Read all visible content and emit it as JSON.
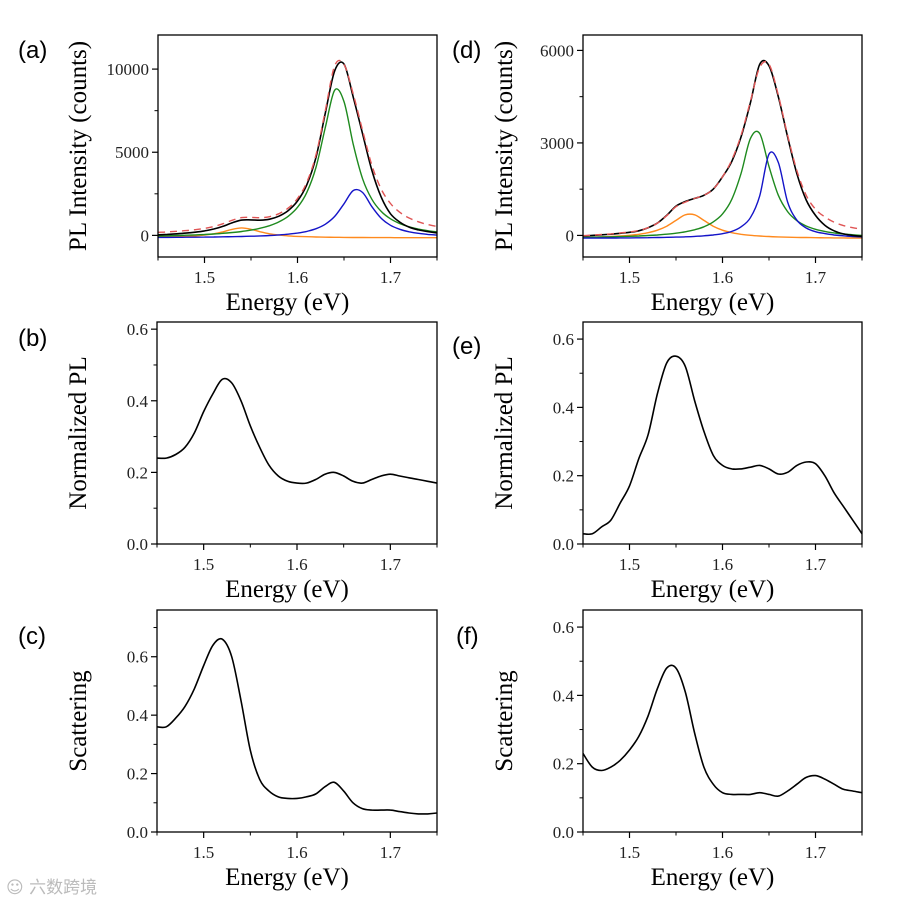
{
  "watermark": "六数跨境",
  "colors": {
    "data": "#000000",
    "fit": "#e05555",
    "green": "#1e8a1e",
    "blue": "#1414c8",
    "orange": "#ff8a1e"
  },
  "chart_data": [
    {
      "id": "a",
      "panel_label": "(a)",
      "type": "line",
      "xlabel": "Energy (eV)",
      "ylabel": "PL Intensity (counts)",
      "xlim": [
        1.45,
        1.75
      ],
      "ylim": [
        -1300,
        12050
      ],
      "xticks": [
        1.5,
        1.6,
        1.7
      ],
      "xtick_labels": [
        "1.5",
        "1.6",
        "1.7"
      ],
      "xminor": [
        1.45,
        1.55,
        1.65,
        1.75
      ],
      "yticks": [
        0,
        5000,
        10000
      ],
      "ytick_labels": [
        "0",
        "5000",
        "10000"
      ],
      "yminor": [
        2500,
        7500
      ],
      "x": [
        1.45,
        1.46,
        1.47,
        1.48,
        1.49,
        1.5,
        1.51,
        1.52,
        1.53,
        1.54,
        1.55,
        1.56,
        1.57,
        1.58,
        1.59,
        1.6,
        1.61,
        1.62,
        1.63,
        1.64,
        1.65,
        1.66,
        1.67,
        1.68,
        1.69,
        1.7,
        1.71,
        1.72,
        1.73,
        1.74,
        1.75
      ],
      "series": [
        {
          "name": "orange component",
          "color": "orange",
          "dashed": false,
          "values": [
            -107,
            -97,
            -82,
            -61,
            -30,
            19,
            96,
            216,
            367,
            450,
            367,
            216,
            96,
            19,
            -30,
            -61,
            -82,
            -97,
            -107,
            -115,
            -121,
            -125,
            -129,
            -131,
            -134,
            -136,
            -137,
            -139,
            -140,
            -141,
            -142
          ]
        },
        {
          "name": "blue component",
          "color": "blue",
          "dashed": false,
          "values": [
            -122,
            -119,
            -115,
            -112,
            -107,
            -102,
            -95,
            -88,
            -78,
            -67,
            -52,
            -33,
            -8,
            26,
            72,
            140,
            241,
            402,
            674,
            1139,
            1901,
            2699,
            2581,
            1726,
            1025,
            607,
            365,
            218,
            125,
            62,
            18
          ]
        },
        {
          "name": "green component",
          "color": "green",
          "dashed": false,
          "values": [
            -37,
            -25,
            -10,
            8,
            28,
            54,
            85,
            123,
            172,
            235,
            317,
            429,
            585,
            810,
            1150,
            1687,
            2583,
            4113,
            6511,
            8731,
            8048,
            5459,
            3403,
            2167,
            1440,
            996,
            710,
            516,
            380,
            281,
            208
          ]
        },
        {
          "name": "measured",
          "color": "data",
          "dashed": false,
          "values": [
            35,
            60,
            93,
            135,
            191,
            271,
            386,
            551,
            761,
            918,
            932,
            912,
            973,
            1155,
            1492,
            2066,
            3042,
            4718,
            7378,
            9900,
            10300,
            8300,
            6100,
            3900,
            2300,
            1300,
            800,
            500,
            330,
            230,
            150
          ]
        },
        {
          "name": "fit",
          "color": "fit",
          "dashed": true,
          "values": [
            185,
            210,
            243,
            285,
            341,
            421,
            536,
            701,
            911,
            1068,
            1082,
            1062,
            1123,
            1305,
            1642,
            2216,
            3192,
            4868,
            7528,
            10205,
            10278,
            8483,
            6305,
            4212,
            2781,
            1917,
            1388,
            1045,
            815,
            652,
            534
          ]
        }
      ]
    },
    {
      "id": "d",
      "panel_label": "(d)",
      "type": "line",
      "xlabel": "Energy (eV)",
      "ylabel": "PL Intensity (counts)",
      "xlim": [
        1.45,
        1.75
      ],
      "ylim": [
        -700,
        6500
      ],
      "xticks": [
        1.5,
        1.6,
        1.7
      ],
      "xtick_labels": [
        "1.5",
        "1.6",
        "1.7"
      ],
      "xminor": [
        1.45,
        1.55,
        1.65,
        1.75
      ],
      "yticks": [
        0,
        3000,
        6000
      ],
      "ytick_labels": [
        "0",
        "3000",
        "6000"
      ],
      "yminor": [
        1500,
        4500
      ],
      "x": [
        1.45,
        1.46,
        1.47,
        1.48,
        1.49,
        1.5,
        1.51,
        1.52,
        1.53,
        1.54,
        1.55,
        1.56,
        1.57,
        1.58,
        1.59,
        1.6,
        1.61,
        1.62,
        1.63,
        1.64,
        1.65,
        1.66,
        1.67,
        1.68,
        1.69,
        1.7,
        1.71,
        1.72,
        1.73,
        1.74,
        1.75
      ],
      "series": [
        {
          "name": "orange component",
          "color": "orange",
          "dashed": false,
          "values": [
            -64,
            -57,
            -48,
            -36,
            -20,
            3,
            37,
            89,
            170,
            300,
            488,
            669,
            669,
            488,
            300,
            170,
            89,
            37,
            3,
            -20,
            -36,
            -48,
            -57,
            -64,
            -69,
            -73,
            -77,
            -80,
            -82,
            -84,
            -86
          ]
        },
        {
          "name": "green component",
          "color": "green",
          "dashed": false,
          "values": [
            -62,
            -57,
            -52,
            -46,
            -38,
            -29,
            -18,
            -3,
            15,
            40,
            72,
            117,
            183,
            281,
            437,
            697,
            1171,
            2014,
            3140,
            3305,
            2235,
            1304,
            773,
            478,
            306,
            199,
            129,
            80,
            45,
            20,
            0
          ]
        },
        {
          "name": "blue component",
          "color": "blue",
          "dashed": false,
          "values": [
            -88,
            -87,
            -85,
            -84,
            -82,
            -79,
            -76,
            -73,
            -68,
            -62,
            -55,
            -46,
            -32,
            -14,
            14,
            57,
            129,
            279,
            574,
            1280,
            2638,
            2368,
            1084,
            494,
            242,
            119,
            60,
            15,
            -13,
            -34,
            -47
          ]
        },
        {
          "name": "measured",
          "color": "data",
          "dashed": false,
          "values": [
            -20,
            0,
            20,
            40,
            70,
            100,
            150,
            250,
            400,
            650,
            950,
            1100,
            1200,
            1300,
            1500,
            1900,
            2400,
            3200,
            4300,
            5550,
            5500,
            4500,
            3200,
            2000,
            1150,
            650,
            330,
            150,
            50,
            0,
            -30
          ]
        },
        {
          "name": "fit",
          "color": "fit",
          "dashed": true,
          "values": [
            -10,
            10,
            30,
            50,
            80,
            110,
            160,
            250,
            400,
            640,
            930,
            1080,
            1200,
            1300,
            1500,
            1900,
            2450,
            3250,
            4350,
            5450,
            5550,
            4550,
            3250,
            2100,
            1300,
            850,
            600,
            430,
            320,
            250,
            200
          ]
        }
      ]
    },
    {
      "id": "b",
      "panel_label": "(b)",
      "type": "line",
      "xlabel": "Energy (eV)",
      "ylabel": "Normalized PL",
      "xlim": [
        1.45,
        1.75
      ],
      "ylim": [
        0,
        0.62
      ],
      "xticks": [
        1.5,
        1.6,
        1.7
      ],
      "xtick_labels": [
        "1.5",
        "1.6",
        "1.7"
      ],
      "xminor": [
        1.45,
        1.55,
        1.65,
        1.75
      ],
      "yticks": [
        0,
        0.2,
        0.4,
        0.6
      ],
      "ytick_labels": [
        "0.0",
        "0.2",
        "0.4",
        "0.6"
      ],
      "yminor": [
        0.1,
        0.3,
        0.5
      ],
      "x": [
        1.45,
        1.46,
        1.47,
        1.48,
        1.49,
        1.5,
        1.51,
        1.52,
        1.53,
        1.54,
        1.55,
        1.56,
        1.57,
        1.58,
        1.59,
        1.6,
        1.61,
        1.62,
        1.63,
        1.64,
        1.65,
        1.66,
        1.67,
        1.68,
        1.69,
        1.7,
        1.71,
        1.72,
        1.73,
        1.74,
        1.75
      ],
      "series": [
        {
          "name": "normalized PL",
          "color": "data",
          "dashed": false,
          "values": [
            0.24,
            0.24,
            0.25,
            0.27,
            0.31,
            0.37,
            0.42,
            0.46,
            0.45,
            0.4,
            0.33,
            0.27,
            0.22,
            0.19,
            0.175,
            0.17,
            0.17,
            0.18,
            0.195,
            0.2,
            0.19,
            0.175,
            0.17,
            0.18,
            0.19,
            0.195,
            0.19,
            0.185,
            0.18,
            0.175,
            0.17
          ]
        }
      ]
    },
    {
      "id": "e",
      "panel_label": "(e)",
      "type": "line",
      "xlabel": "Energy (eV)",
      "ylabel": "Normalized PL",
      "xlim": [
        1.45,
        1.75
      ],
      "ylim": [
        0,
        0.65
      ],
      "xticks": [
        1.5,
        1.6,
        1.7
      ],
      "xtick_labels": [
        "1.5",
        "1.6",
        "1.7"
      ],
      "xminor": [
        1.45,
        1.55,
        1.65,
        1.75
      ],
      "yticks": [
        0,
        0.2,
        0.4,
        0.6
      ],
      "ytick_labels": [
        "0.0",
        "0.2",
        "0.4",
        "0.6"
      ],
      "yminor": [
        0.1,
        0.3,
        0.5
      ],
      "x": [
        1.45,
        1.46,
        1.47,
        1.48,
        1.49,
        1.5,
        1.51,
        1.52,
        1.53,
        1.54,
        1.55,
        1.56,
        1.57,
        1.58,
        1.59,
        1.6,
        1.61,
        1.62,
        1.63,
        1.64,
        1.65,
        1.66,
        1.67,
        1.68,
        1.69,
        1.7,
        1.71,
        1.72,
        1.73,
        1.74,
        1.75
      ],
      "series": [
        {
          "name": "normalized PL",
          "color": "data",
          "dashed": false,
          "values": [
            0.03,
            0.03,
            0.05,
            0.07,
            0.12,
            0.17,
            0.25,
            0.32,
            0.44,
            0.53,
            0.55,
            0.52,
            0.42,
            0.33,
            0.26,
            0.23,
            0.22,
            0.22,
            0.225,
            0.23,
            0.22,
            0.205,
            0.21,
            0.23,
            0.24,
            0.235,
            0.2,
            0.15,
            0.11,
            0.07,
            0.03
          ]
        }
      ]
    },
    {
      "id": "c",
      "panel_label": "(c)",
      "type": "line",
      "xlabel": "Energy (eV)",
      "ylabel": "Scattering",
      "xlim": [
        1.45,
        1.75
      ],
      "ylim": [
        0,
        0.76
      ],
      "xticks": [
        1.5,
        1.6,
        1.7
      ],
      "xtick_labels": [
        "1.5",
        "1.6",
        "1.7"
      ],
      "xminor": [
        1.45,
        1.55,
        1.65,
        1.75
      ],
      "yticks": [
        0,
        0.2,
        0.4,
        0.6
      ],
      "ytick_labels": [
        "0.0",
        "0.2",
        "0.4",
        "0.6"
      ],
      "yminor": [
        0.1,
        0.3,
        0.5,
        0.7
      ],
      "x": [
        1.45,
        1.46,
        1.47,
        1.48,
        1.49,
        1.5,
        1.51,
        1.52,
        1.53,
        1.54,
        1.55,
        1.56,
        1.57,
        1.58,
        1.59,
        1.6,
        1.61,
        1.62,
        1.63,
        1.64,
        1.65,
        1.66,
        1.67,
        1.68,
        1.69,
        1.7,
        1.71,
        1.72,
        1.73,
        1.74,
        1.75
      ],
      "series": [
        {
          "name": "scattering",
          "color": "data",
          "dashed": false,
          "values": [
            0.36,
            0.36,
            0.39,
            0.43,
            0.49,
            0.57,
            0.64,
            0.66,
            0.6,
            0.45,
            0.28,
            0.18,
            0.14,
            0.12,
            0.115,
            0.115,
            0.12,
            0.13,
            0.155,
            0.17,
            0.14,
            0.1,
            0.08,
            0.075,
            0.075,
            0.075,
            0.07,
            0.065,
            0.062,
            0.062,
            0.065
          ]
        }
      ]
    },
    {
      "id": "f",
      "panel_label": "(f)",
      "type": "line",
      "xlabel": "Energy (eV)",
      "ylabel": "Scattering",
      "xlim": [
        1.45,
        1.75
      ],
      "ylim": [
        0,
        0.65
      ],
      "xticks": [
        1.5,
        1.6,
        1.7
      ],
      "xtick_labels": [
        "1.5",
        "1.6",
        "1.7"
      ],
      "xminor": [
        1.45,
        1.55,
        1.65,
        1.75
      ],
      "yticks": [
        0,
        0.2,
        0.4,
        0.6
      ],
      "ytick_labels": [
        "0.0",
        "0.2",
        "0.4",
        "0.6"
      ],
      "yminor": [
        0.1,
        0.3,
        0.5
      ],
      "x": [
        1.45,
        1.46,
        1.47,
        1.48,
        1.49,
        1.5,
        1.51,
        1.52,
        1.53,
        1.54,
        1.55,
        1.56,
        1.57,
        1.58,
        1.59,
        1.6,
        1.61,
        1.62,
        1.63,
        1.64,
        1.65,
        1.66,
        1.67,
        1.68,
        1.69,
        1.7,
        1.71,
        1.72,
        1.73,
        1.74,
        1.75
      ],
      "series": [
        {
          "name": "scattering",
          "color": "data",
          "dashed": false,
          "values": [
            0.23,
            0.19,
            0.18,
            0.19,
            0.21,
            0.24,
            0.28,
            0.34,
            0.42,
            0.48,
            0.48,
            0.41,
            0.29,
            0.19,
            0.14,
            0.115,
            0.11,
            0.11,
            0.11,
            0.115,
            0.11,
            0.105,
            0.12,
            0.14,
            0.16,
            0.165,
            0.155,
            0.14,
            0.125,
            0.12,
            0.115
          ]
        }
      ]
    }
  ]
}
